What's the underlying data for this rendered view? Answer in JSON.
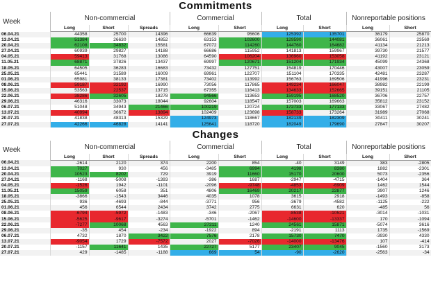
{
  "commitments": {
    "title": "Commitments",
    "groups": {
      "week": "Week",
      "noncommercial": "Non-commercial",
      "commercial": "Commercial",
      "total": "Total",
      "nonreportable": "Nonreportable positions"
    },
    "sub": [
      "Long",
      "Short",
      "Spreads",
      "Long",
      "Short",
      "Long",
      "Short",
      "Long",
      "Short"
    ],
    "rows": [
      {
        "week": "06.04.21",
        "v": [
          "44358",
          "25700",
          "14396",
          "66639",
          "95606",
          "125392",
          "135701",
          "36179",
          "25870"
        ],
        "c": [
          "",
          "",
          "",
          "",
          "",
          "b",
          "b",
          "",
          ""
        ]
      },
      {
        "week": "13.04.21",
        "v": [
          "51384",
          "26630",
          "14852",
          "63153",
          "102600",
          "129590",
          "144081",
          "36061",
          "23569"
        ],
        "c": [
          "g",
          "",
          "",
          "",
          "g",
          "g",
          "g",
          "",
          ""
        ]
      },
      {
        "week": "20.04.21",
        "v": [
          "62108",
          "34832",
          "15581",
          "67072",
          "114260",
          "144760",
          "164682",
          "41134",
          "21213"
        ],
        "c": [
          "g",
          "g",
          "",
          "",
          "g",
          "g",
          "g",
          "",
          ""
        ]
      },
      {
        "week": "27.04.21",
        "v": [
          "60939",
          "29827",
          "14188",
          "66686",
          "115952",
          "141813",
          "159967",
          "39730",
          "21577"
        ],
        "c": [
          "",
          "",
          "",
          "",
          "",
          "",
          "",
          "",
          ""
        ]
      },
      {
        "week": "04.05.21",
        "v": [
          "59413",
          "31768",
          "13086",
          "64590",
          "106204",
          "136960",
          "153058",
          "41192",
          "23121"
        ],
        "c": [
          "r",
          "",
          "",
          "",
          "r",
          "r",
          "r",
          "",
          ""
        ]
      },
      {
        "week": "11.05.21",
        "v": [
          "68871",
          "37826",
          "13437",
          "69997",
          "120671",
          "151204",
          "171934",
          "45099",
          "24368"
        ],
        "c": [
          "g",
          "",
          "",
          "",
          "g",
          "g",
          "g",
          "",
          ""
        ]
      },
      {
        "week": "18.05.21",
        "v": [
          "64505",
          "36283",
          "16683",
          "73432",
          "127751",
          "154819",
          "170446",
          "43007",
          "23059"
        ],
        "c": [
          "",
          "",
          "",
          "",
          "",
          "",
          "",
          "",
          ""
        ]
      },
      {
        "week": "25.05.21",
        "v": [
          "65441",
          "31589",
          "16009",
          "69961",
          "122707",
          "151104",
          "170335",
          "42481",
          "23287"
        ],
        "c": [
          "",
          "",
          "",
          "",
          "",
          "",
          "",
          "",
          ""
        ]
      },
      {
        "week": "01.06.21",
        "v": [
          "65981",
          "38133",
          "17381",
          "73402",
          "113992",
          "156763",
          "169506",
          "41996",
          "23231"
        ],
        "c": [
          "",
          "",
          "",
          "",
          "",
          "",
          "",
          "",
          ""
        ]
      },
      {
        "week": "08.06.21",
        "v": [
          "59187",
          "32192",
          "16990",
          "73056",
          "117865",
          "149234",
          "166047",
          "38982",
          "22199"
        ],
        "c": [
          "r",
          "r",
          "",
          "",
          "",
          "r",
          "r",
          "",
          ""
        ]
      },
      {
        "week": "15.06.21",
        "v": [
          "53563",
          "22537",
          "13715",
          "67355",
          "116413",
          "134633",
          "152665",
          "39151",
          "21105"
        ],
        "c": [
          "",
          "r",
          "",
          "",
          "",
          "r",
          "r",
          "",
          ""
        ]
      },
      {
        "week": "22.06.21",
        "v": [
          "38286",
          "32605",
          "18278",
          "94566",
          "113653",
          "159195",
          "168520",
          "36706",
          "22757"
        ],
        "c": [
          "r",
          "g",
          "",
          "g",
          "",
          "g",
          "g",
          "",
          ""
        ]
      },
      {
        "week": "29.06.21",
        "v": [
          "46316",
          "33073",
          "18044",
          "92604",
          "118547",
          "157003",
          "169663",
          "35812",
          "23152"
        ],
        "c": [
          "",
          "",
          "",
          "",
          "",
          "",
          "",
          "",
          ""
        ]
      },
      {
        "week": "06.07.21",
        "v": [
          "51048",
          "34943",
          "21466",
          "100219",
          "120724",
          "172733",
          "177133",
          "33067",
          "27482"
        ],
        "c": [
          "",
          "",
          "g",
          "g",
          "",
          "g",
          "g",
          "",
          ""
        ]
      },
      {
        "week": "13.07.21",
        "v": [
          "40994",
          "36672",
          "13894",
          "102409",
          "123698",
          "158733",
          "173264",
          "31989",
          "27068"
        ],
        "c": [
          "r",
          "",
          "r",
          "",
          "",
          "r",
          "",
          "",
          ""
        ]
      },
      {
        "week": "20.07.21",
        "v": [
          "41838",
          "48313",
          "15329",
          "124973",
          "118667",
          "182139",
          "182309",
          "30411",
          "30241"
        ],
        "c": [
          "",
          "",
          "",
          "b",
          "",
          "b",
          "b",
          "",
          ""
        ]
      },
      {
        "week": "27.07.21",
        "v": [
          "42266",
          "46828",
          "14141",
          "125641",
          "118720",
          "182049",
          "179690",
          "27847",
          "30207"
        ],
        "c": [
          "b",
          "b",
          "",
          "b",
          "",
          "b",
          "b",
          "",
          ""
        ]
      }
    ]
  },
  "changes": {
    "title": "Changes",
    "groups": {
      "week": "Week",
      "noncommercial": "Non-commercial",
      "commercial": "Commercial",
      "total": "Total",
      "nonreportable": "Nonreportable positions"
    },
    "sub": [
      "Long",
      "Short",
      "Spreads",
      "Long",
      "Short",
      "Long",
      "Short",
      "Long",
      "Short"
    ],
    "rows": [
      {
        "week": "06.04.21",
        "v": [
          "-2614",
          "2120",
          "374",
          "2200",
          "854",
          "-40",
          "3149",
          "383",
          "-2805"
        ],
        "c": [
          "",
          "",
          "",
          "",
          "",
          "",
          "",
          "",
          ""
        ]
      },
      {
        "week": "13.04.21",
        "v": [
          "7027",
          "930",
          "456",
          "-3485",
          "6994",
          "4198",
          "8380",
          "1882",
          "-2301"
        ],
        "c": [
          "g",
          "",
          "",
          "",
          "g",
          "g",
          "g",
          "",
          ""
        ]
      },
      {
        "week": "20.04.21",
        "v": [
          "10523",
          "8202",
          "729",
          "3919",
          "11660",
          "15170",
          "20600",
          "5073",
          "-2356"
        ],
        "c": [
          "g",
          "g",
          "",
          "",
          "g",
          "g",
          "g",
          "",
          ""
        ]
      },
      {
        "week": "27.04.21",
        "v": [
          "-1168",
          "-5008",
          "-1393",
          "-386",
          "1687",
          "-2947",
          "-4715",
          "-1404",
          "364"
        ],
        "c": [
          "",
          "",
          "",
          "",
          "",
          "",
          "",
          "",
          ""
        ]
      },
      {
        "week": "04.05.21",
        "v": [
          "-1526",
          "1942",
          "-1101",
          "-2096",
          "-9748",
          "-4853",
          "-6909",
          "1462",
          "1544"
        ],
        "c": [
          "r",
          "",
          "",
          "",
          "r",
          "r",
          "r",
          "",
          ""
        ]
      },
      {
        "week": "11.05.21",
        "v": [
          "15059",
          "6058",
          "351",
          "4806",
          "16469",
          "20217",
          "22877",
          "3907",
          "1246"
        ],
        "c": [
          "g",
          "",
          "",
          "",
          "g",
          "g",
          "g",
          "",
          ""
        ]
      },
      {
        "week": "18.05.21",
        "v": [
          "-3866",
          "-1543",
          "3446",
          "4035",
          "1078",
          "3615",
          "2918",
          "-1493",
          "-858"
        ],
        "c": [
          "",
          "",
          "",
          "",
          "",
          "",
          "",
          "",
          ""
        ]
      },
      {
        "week": "25.05.21",
        "v": [
          "936",
          "-4693",
          "-844",
          "-3771",
          "956",
          "-3679",
          "-4582",
          "-1125",
          "-222"
        ],
        "c": [
          "",
          "",
          "",
          "",
          "",
          "",
          "",
          "",
          ""
        ]
      },
      {
        "week": "01.06.21",
        "v": [
          "456",
          "6544",
          "2434",
          "3742",
          "2775",
          "6631",
          "620",
          "-485",
          "56"
        ],
        "c": [
          "",
          "",
          "",
          "",
          "",
          "",
          "",
          "",
          ""
        ]
      },
      {
        "week": "08.06.21",
        "v": [
          "-6794",
          "-5972",
          "-1483",
          "-346",
          "-2067",
          "-8538",
          "-10521",
          "-3014",
          "-1031"
        ],
        "c": [
          "r",
          "r",
          "",
          "",
          "",
          "r",
          "r",
          "",
          ""
        ]
      },
      {
        "week": "15.06.21",
        "v": [
          "-5625",
          "-9617",
          "-3274",
          "-5701",
          "-1462",
          "-14600",
          "-13337",
          "170",
          "-1094"
        ],
        "c": [
          "r",
          "r",
          "",
          "",
          "",
          "r",
          "r",
          "",
          ""
        ]
      },
      {
        "week": "22.06.21",
        "v": [
          "-7277",
          "10068",
          "4563",
          "27211",
          "1240",
          "24561",
          "15871",
          "-5074",
          "3616"
        ],
        "c": [
          "r",
          "g",
          "",
          "g",
          "",
          "g",
          "g",
          "",
          ""
        ]
      },
      {
        "week": "29.06.21",
        "v": [
          "-35",
          "454",
          "-234",
          "-1922",
          "894",
          "-2191",
          "1113",
          "1735",
          "-1569"
        ],
        "c": [
          "",
          "",
          "",
          "",
          "",
          "",
          "",
          "",
          ""
        ]
      },
      {
        "week": "06.07.21",
        "v": [
          "4732",
          "1870",
          "3422",
          "7576",
          "2178",
          "15730",
          "7470",
          "-3930",
          "4330"
        ],
        "c": [
          "",
          "",
          "g",
          "g",
          "",
          "g",
          "g",
          "",
          ""
        ]
      },
      {
        "week": "13.07.21",
        "v": [
          "-9054",
          "1729",
          "-7572",
          "2027",
          "-7026",
          "-14000",
          "-13476",
          "107",
          "-414"
        ],
        "c": [
          "r",
          "",
          "r",
          "",
          "r",
          "r",
          "r",
          "",
          ""
        ]
      },
      {
        "week": "20.07.21",
        "v": [
          "-1157",
          "11641",
          "1435",
          "22727",
          "5177",
          "23407",
          "9045",
          "-1560",
          "3173"
        ],
        "c": [
          "",
          "g",
          "",
          "g",
          "",
          "g",
          "g",
          "",
          ""
        ]
      },
      {
        "week": "27.07.21",
        "v": [
          "429",
          "-1485",
          "-1188",
          "669",
          "54",
          "-90",
          "-2620",
          "-2563",
          "-34"
        ],
        "c": [
          "",
          "",
          "",
          "b",
          "b",
          "b",
          "b",
          "",
          ""
        ]
      }
    ]
  }
}
